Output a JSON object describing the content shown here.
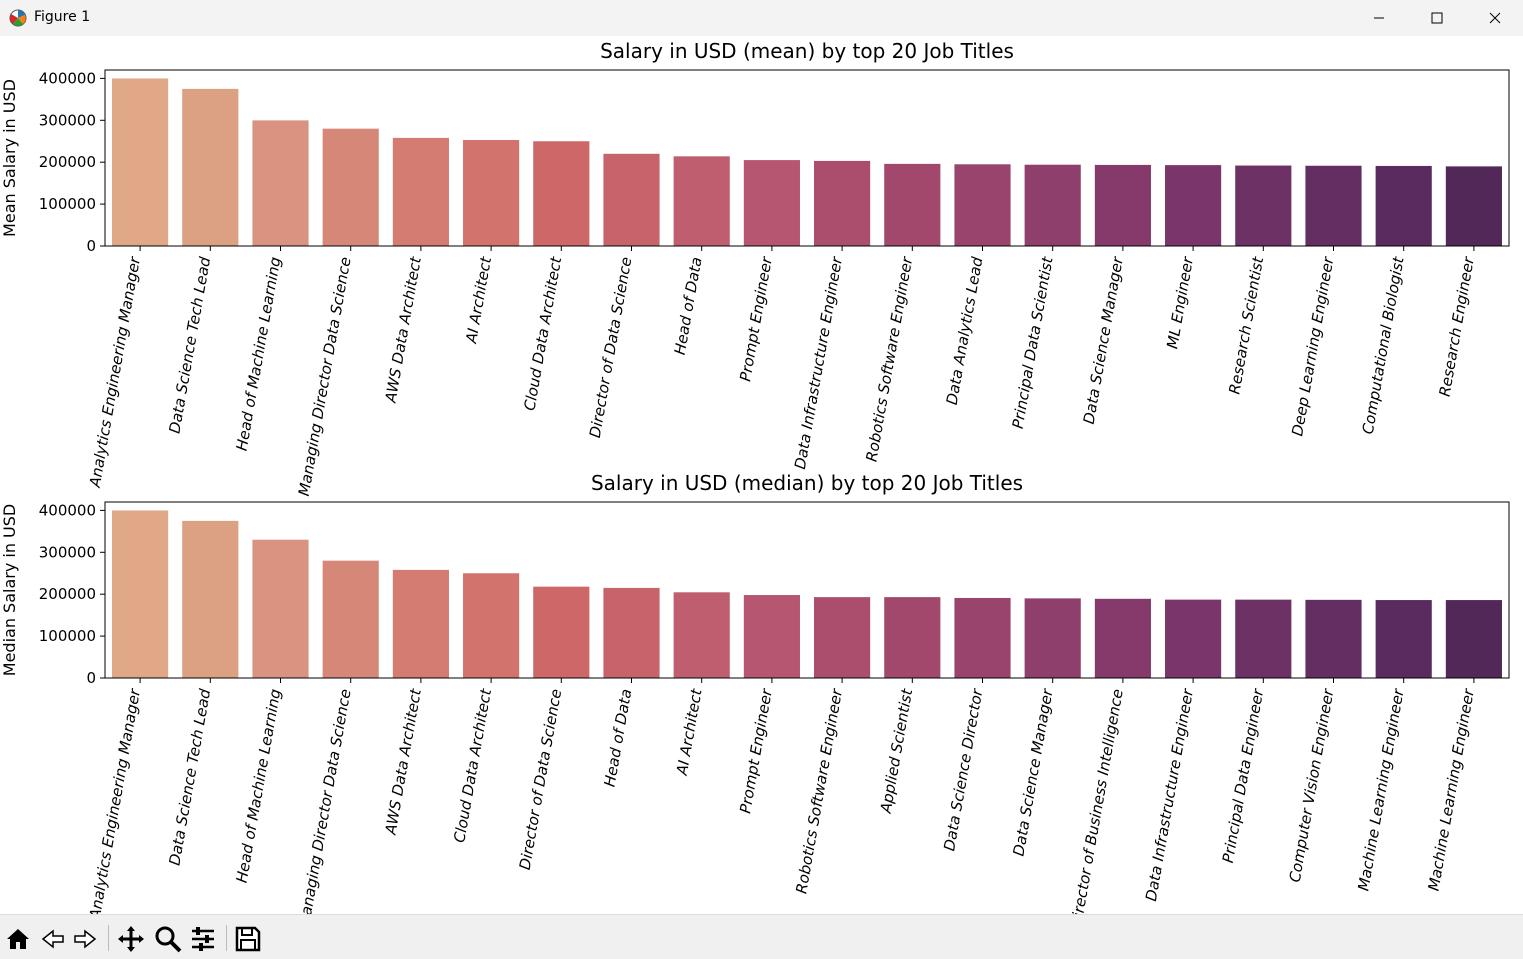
{
  "window": {
    "title": "Figure 1"
  },
  "toolbar": {
    "icons": [
      "home-icon",
      "back-arrow-icon",
      "forward-arrow-icon",
      "pan-move-icon",
      "zoom-magnifier-icon",
      "configure-subplots-icon",
      "save-floppy-icon"
    ]
  },
  "colors": {
    "palette": [
      "#e0a886",
      "#dca083",
      "#d99380",
      "#d68878",
      "#d47c71",
      "#d3736d",
      "#ce6868",
      "#c6636b",
      "#bf5e6f",
      "#b65671",
      "#ab4e6e",
      "#a2486d",
      "#99446d",
      "#8f3f6c",
      "#853a6b",
      "#7a366a",
      "#6d3166",
      "#632e62",
      "#5a2b5e",
      "#522858"
    ]
  },
  "chart_data": [
    {
      "type": "bar",
      "title": "Salary in USD (mean) by top 20 Job Titles",
      "xlabel": "",
      "ylabel": "Mean Salary in USD",
      "ylim": [
        0,
        420000
      ],
      "yticks": [
        "0",
        "100000",
        "200000",
        "300000",
        "400000"
      ],
      "grid": false,
      "categories": [
        "Analytics Engineering Manager",
        "Data Science Tech Lead",
        "Head of Machine Learning",
        "Managing Director Data Science",
        "AWS Data Architect",
        "AI Architect",
        "Cloud Data Architect",
        "Director of Data Science",
        "Head of Data",
        "Prompt Engineer",
        "Data Infrastructure Engineer",
        "Robotics Software Engineer",
        "Data Analytics Lead",
        "Principal Data Scientist",
        "Data Science Manager",
        "ML Engineer",
        "Research Scientist",
        "Deep Learning Engineer",
        "Computational Biologist",
        "Research Engineer"
      ],
      "values": [
        399880,
        375000,
        299758,
        280000,
        258000,
        253011,
        250000,
        220000,
        214000,
        205000,
        203000,
        196000,
        195000,
        194000,
        193500,
        193000,
        192000,
        191500,
        191000,
        190000
      ]
    },
    {
      "type": "bar",
      "title": "Salary in USD (median) by top 20 Job Titles",
      "xlabel": "",
      "ylabel": "Median Salary in USD",
      "ylim": [
        0,
        420000
      ],
      "yticks": [
        "0",
        "100000",
        "200000",
        "300000",
        "400000"
      ],
      "grid": false,
      "categories": [
        "Analytics Engineering Manager",
        "Data Science Tech Lead",
        "Head of Machine Learning",
        "Managing Director Data Science",
        "AWS Data Architect",
        "Cloud Data Architect",
        "Director of Data Science",
        "Head of Data",
        "AI Architect",
        "Prompt Engineer",
        "Robotics Software Engineer",
        "Applied Scientist",
        "Data Science Director",
        "Data Science Manager",
        "Director of Business Intelligence",
        "Data Infrastructure Engineer",
        "Principal Data Engineer",
        "Computer Vision Engineer",
        "Machine Learning Engineer",
        "Machine Learning Engineer"
      ],
      "values": [
        399880,
        375000,
        330000,
        280000,
        258000,
        250000,
        218000,
        215000,
        204500,
        198000,
        193000,
        193000,
        191000,
        190000,
        189000,
        187000,
        187000,
        186500,
        186000,
        186000
      ]
    }
  ]
}
